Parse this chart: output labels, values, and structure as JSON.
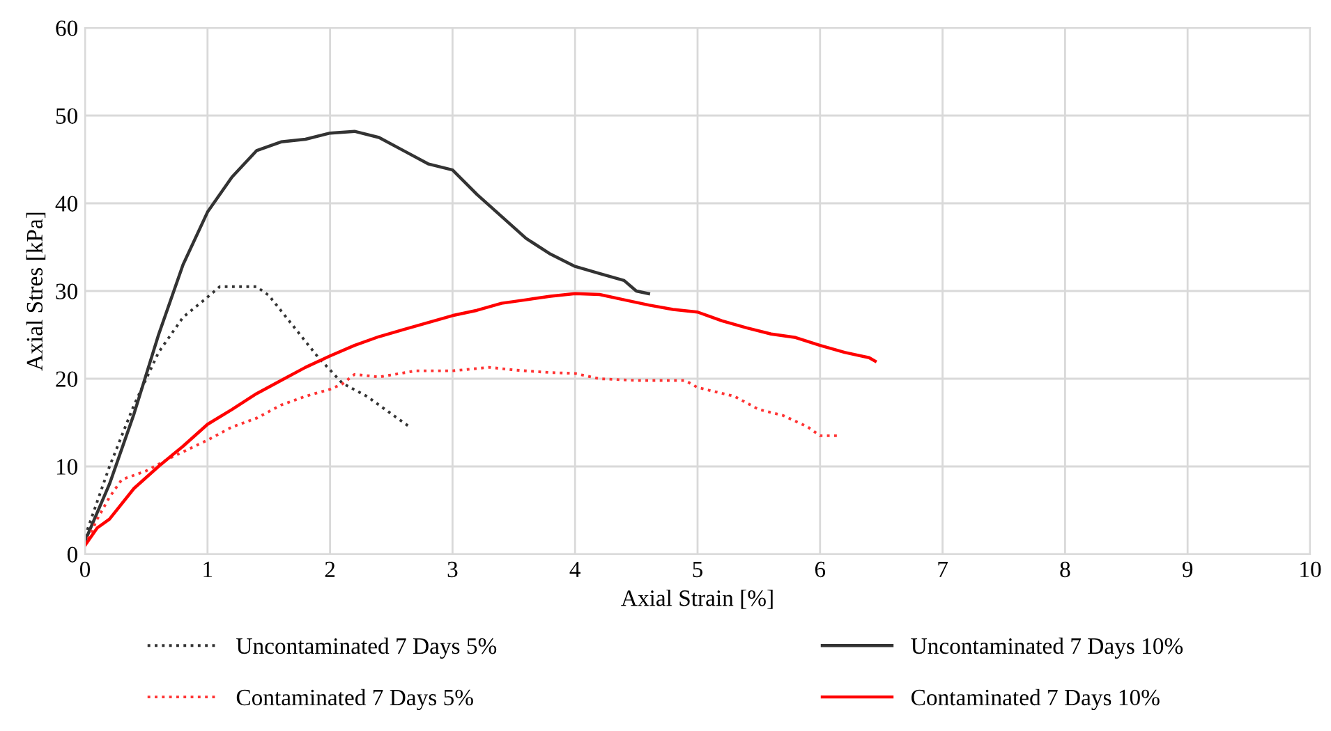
{
  "chart_data": {
    "type": "line",
    "xlabel": "Axial Strain [%]",
    "ylabel": "Axial Stres [kPa]",
    "xlim": [
      0,
      10
    ],
    "xticks": [
      0,
      1,
      2,
      3,
      4,
      5,
      6,
      7,
      8,
      9,
      10
    ],
    "ylim": [
      0,
      60
    ],
    "yticks": [
      0,
      10,
      20,
      30,
      40,
      50,
      60
    ],
    "grid": true,
    "legend": "bottom",
    "marker": "none",
    "series": [
      {
        "name": "Uncontaminated 7 Days 5%",
        "color": "#333333",
        "line_style": "dotted",
        "x": [
          0,
          0.2,
          0.4,
          0.6,
          0.8,
          1.0,
          1.1,
          1.4,
          1.5,
          1.7,
          1.9,
          2.1,
          2.3,
          2.5,
          2.65
        ],
        "values": [
          2,
          10,
          17,
          23,
          27,
          29.3,
          30.5,
          30.5,
          29.5,
          26,
          22.5,
          19.5,
          18,
          16,
          14.5
        ]
      },
      {
        "name": "Uncontaminated 7 Days 10%",
        "color": "#333333",
        "line_style": "solid",
        "x": [
          0,
          0.2,
          0.4,
          0.6,
          0.8,
          1.0,
          1.2,
          1.4,
          1.6,
          1.8,
          2.0,
          2.2,
          2.4,
          2.6,
          2.8,
          3.0,
          3.2,
          3.4,
          3.6,
          3.8,
          4.0,
          4.2,
          4.4,
          4.5,
          4.6
        ],
        "values": [
          1.5,
          8,
          16,
          25,
          33,
          39,
          43,
          46,
          47,
          47.3,
          48,
          48.2,
          47.5,
          46,
          44.5,
          43.8,
          41,
          38.5,
          36,
          34.2,
          32.8,
          32,
          31.2,
          30,
          29.7
        ]
      },
      {
        "name": "Contaminated 7 Days 5%",
        "color": "#ff3333",
        "line_style": "dotted",
        "x": [
          0,
          0.1,
          0.2,
          0.3,
          0.5,
          0.7,
          1.0,
          1.2,
          1.4,
          1.6,
          1.8,
          2.0,
          2.1,
          2.2,
          2.4,
          2.7,
          3.0,
          3.3,
          3.5,
          3.8,
          4.0,
          4.2,
          4.5,
          4.9,
          5.0,
          5.3,
          5.5,
          5.7,
          5.9,
          6.0,
          6.15
        ],
        "values": [
          1,
          4,
          6.5,
          8.5,
          9.5,
          11,
          13,
          14.5,
          15.5,
          17,
          18,
          18.8,
          19.4,
          20.5,
          20.2,
          20.9,
          20.9,
          21.3,
          21,
          20.7,
          20.6,
          20,
          19.8,
          19.8,
          19,
          18,
          16.5,
          15.8,
          14.5,
          13.5,
          13.5
        ]
      },
      {
        "name": "Contaminated 7 Days 10%",
        "color": "#ff0000",
        "line_style": "solid",
        "x": [
          0,
          0.1,
          0.2,
          0.4,
          0.6,
          0.8,
          1.0,
          1.2,
          1.4,
          1.6,
          1.8,
          2.0,
          2.2,
          2.4,
          2.6,
          2.8,
          3.0,
          3.2,
          3.4,
          3.6,
          3.8,
          4.0,
          4.2,
          4.4,
          4.6,
          4.8,
          5.0,
          5.2,
          5.4,
          5.6,
          5.8,
          6.0,
          6.2,
          6.4,
          6.45
        ],
        "values": [
          1,
          3,
          4,
          7.5,
          10,
          12.3,
          14.8,
          16.5,
          18.3,
          19.8,
          21.3,
          22.6,
          23.8,
          24.8,
          25.6,
          26.4,
          27.2,
          27.8,
          28.6,
          29,
          29.4,
          29.7,
          29.6,
          29,
          28.4,
          27.9,
          27.6,
          26.6,
          25.8,
          25.1,
          24.7,
          23.8,
          23,
          22.4,
          22
        ]
      }
    ]
  }
}
